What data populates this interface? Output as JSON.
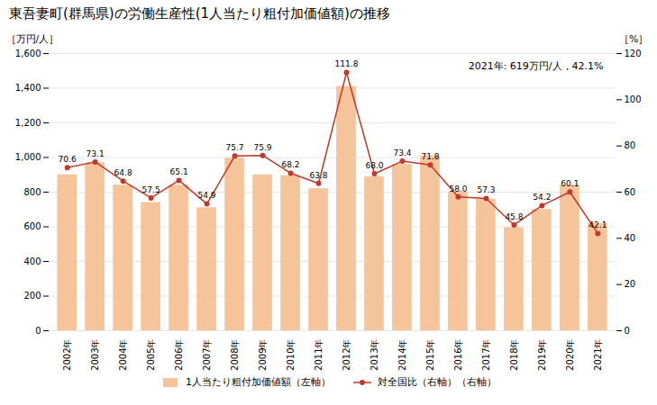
{
  "chart_data": {
    "type": "bar",
    "title": "東吾妻町(群馬県)の労働生産性(1人当たり粗付加価値額)の推移",
    "categories": [
      "2002年",
      "2003年",
      "2004年",
      "2005年",
      "2006年",
      "2007年",
      "2008年",
      "2009年",
      "2010年",
      "2011年",
      "2012年",
      "2013年",
      "2014年",
      "2015年",
      "2016年",
      "2017年",
      "2018年",
      "2019年",
      "2020年",
      "2021年"
    ],
    "series": [
      {
        "name": "1人当たり粗付加価値額（左軸）",
        "type": "bar",
        "color": "#F5C49A",
        "values": [
          900,
          970,
          840,
          740,
          840,
          710,
          995,
          900,
          895,
          820,
          1410,
          890,
          960,
          1010,
          800,
          760,
          595,
          700,
          840,
          619
        ]
      },
      {
        "name": "対全国比（右軸）（右軸）",
        "type": "line",
        "axis": "y2",
        "color": "#C0392B",
        "marker": "circle",
        "data_labels": true,
        "values": [
          70.6,
          73.1,
          64.8,
          57.5,
          65.1,
          54.9,
          75.7,
          75.9,
          68.2,
          63.8,
          111.8,
          68.0,
          73.4,
          71.8,
          58.0,
          57.3,
          45.8,
          54.2,
          60.1,
          42.1
        ],
        "value_labels": [
          "70.6",
          "73.1",
          "64.8",
          "57.5",
          "65.1",
          "54.9",
          "75.7",
          "75.9",
          "68.2",
          "63.8",
          "111.8",
          "68.0",
          "73.4",
          "71.8",
          "58.0",
          "57.3",
          "45.8",
          "54.2",
          "60.1",
          "42.1"
        ]
      }
    ],
    "ylabel": "［万円/人］",
    "y2label": "［%］",
    "ylim": [
      0,
      1600
    ],
    "yticks": [
      0,
      200,
      400,
      600,
      800,
      {
        "value": 1000,
        "label": "1,000"
      },
      {
        "value": 1200,
        "label": "1,200"
      },
      {
        "value": 1400,
        "label": "1,400"
      },
      {
        "value": 1600,
        "label": "1,600"
      }
    ],
    "y2lim": [
      0,
      120
    ],
    "y2ticks": [
      0,
      20,
      40,
      60,
      80,
      100,
      120
    ],
    "annotation": "2021年: 619万円/人，42.1%",
    "grid": true,
    "legend": "bottom"
  }
}
